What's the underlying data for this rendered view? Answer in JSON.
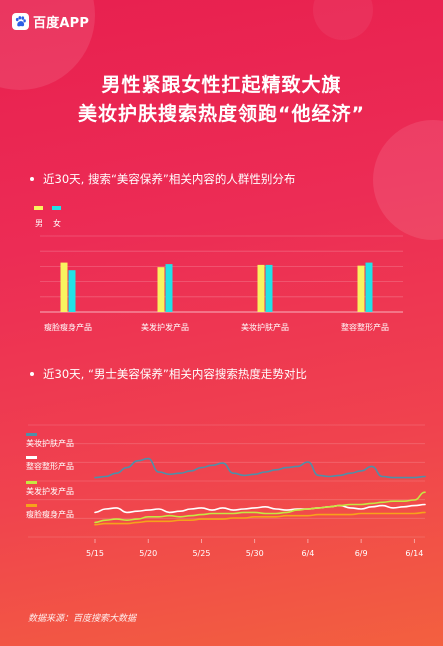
{
  "brand": {
    "name": "百度APP",
    "logo_icon": "paw-icon"
  },
  "title": {
    "line1": "男性紧跟女性扛起精致大旗",
    "line2": "美妆护肤搜索热度领跑“他经济”"
  },
  "section1": {
    "heading": "近30天, 搜索“美容保养”相关内容的人群性别分布"
  },
  "section2": {
    "heading": "近30天, “男士美容保养”相关内容搜索热度走势对比"
  },
  "source": "数据来源：百度搜索大数据",
  "chart_data": [
    {
      "type": "bar",
      "title": "近30天, 搜索“美容保养”相关内容的人群性别分布",
      "categories": [
        "瘦脸瘦身产品",
        "美发护发产品",
        "美妆护肤产品",
        "整容整形产品"
      ],
      "series": [
        {
          "name": "男",
          "color": "#f9f35f",
          "values": [
            65,
            59,
            62,
            61
          ]
        },
        {
          "name": "女",
          "color": "#21e2e6",
          "values": [
            55,
            63,
            62,
            65
          ]
        }
      ],
      "ylim": [
        0,
        100
      ],
      "grid": true,
      "legend": "top-left"
    },
    {
      "type": "line",
      "title": "近30天, “男士美容保养”相关内容搜索热度走势对比",
      "x": [
        "5/15",
        "5/16",
        "5/17",
        "5/18",
        "5/19",
        "5/20",
        "5/21",
        "5/22",
        "5/23",
        "5/24",
        "5/25",
        "5/26",
        "5/27",
        "5/28",
        "5/29",
        "5/30",
        "5/31",
        "6/1",
        "6/2",
        "6/3",
        "6/4",
        "6/5",
        "6/6",
        "6/7",
        "6/8",
        "6/9",
        "6/10",
        "6/11",
        "6/12",
        "6/13",
        "6/14",
        "6/15"
      ],
      "xticks": [
        "5/15",
        "5/20",
        "5/25",
        "5/30",
        "6/4",
        "6/9",
        "6/14"
      ],
      "series": [
        {
          "name": "美妆护肤产品",
          "color": "#4f8fa8",
          "values": [
            53,
            54,
            57,
            62,
            68,
            70,
            58,
            56,
            57,
            59,
            62,
            64,
            66,
            57,
            55,
            56,
            58,
            60,
            62,
            63,
            67,
            55,
            54,
            55,
            57,
            59,
            63,
            54,
            53,
            53,
            53,
            54
          ]
        },
        {
          "name": "整容整形产品",
          "color": "#ffffff",
          "values": [
            22,
            25,
            26,
            22,
            23,
            24,
            25,
            22,
            23,
            25,
            26,
            24,
            26,
            24,
            25,
            26,
            27,
            25,
            24,
            25,
            25,
            26,
            27,
            28,
            26,
            25,
            27,
            28,
            26,
            27,
            28,
            29
          ]
        },
        {
          "name": "美发护发产品",
          "color": "#c6e842",
          "values": [
            13,
            15,
            16,
            15,
            16,
            18,
            18,
            19,
            18,
            19,
            20,
            21,
            21,
            21,
            22,
            22,
            21,
            21,
            22,
            24,
            25,
            26,
            27,
            28,
            29,
            29,
            30,
            31,
            32,
            32,
            33,
            40
          ]
        },
        {
          "name": "瘦脸瘦身产品",
          "color": "#f6a21b",
          "values": [
            11,
            12,
            12,
            12,
            13,
            14,
            14,
            14,
            15,
            15,
            16,
            16,
            16,
            17,
            17,
            18,
            18,
            18,
            19,
            19,
            19,
            20,
            20,
            20,
            20,
            21,
            21,
            21,
            21,
            21,
            21,
            22
          ]
        }
      ],
      "ylim": [
        0,
        100
      ],
      "grid": true,
      "legend": "left"
    }
  ]
}
